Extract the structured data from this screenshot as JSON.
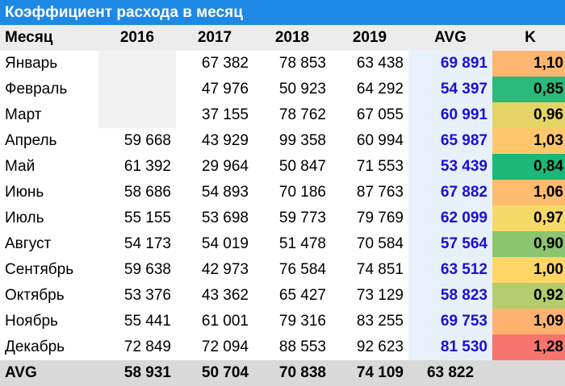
{
  "title": "Коэффициент расхода в месяц",
  "headers": [
    "Месяц",
    "2016",
    "2017",
    "2018",
    "2019",
    "AVG",
    "K"
  ],
  "rows": [
    {
      "month": "Январь",
      "y2016": "",
      "y2017": "67 382",
      "y2018": "78 853",
      "y2019": "63 438",
      "avg": "69 891",
      "k": "1,10",
      "k_color": "#fdb56f"
    },
    {
      "month": "Февраль",
      "y2016": "",
      "y2017": "47 976",
      "y2018": "50 923",
      "y2019": "64 292",
      "avg": "54 397",
      "k": "0,85",
      "k_color": "#2bba7a"
    },
    {
      "month": "Март",
      "y2016": "",
      "y2017": "37 155",
      "y2018": "78 762",
      "y2019": "67 055",
      "avg": "60 991",
      "k": "0,96",
      "k_color": "#e5d464"
    },
    {
      "month": "Апрель",
      "y2016": "59 668",
      "y2017": "43 929",
      "y2018": "99 358",
      "y2019": "60 994",
      "avg": "65 987",
      "k": "1,03",
      "k_color": "#fec86a"
    },
    {
      "month": "Май",
      "y2016": "61 392",
      "y2017": "29 964",
      "y2018": "50 847",
      "y2019": "71 553",
      "avg": "53 439",
      "k": "0,84",
      "k_color": "#1bb877"
    },
    {
      "month": "Июнь",
      "y2016": "58 686",
      "y2017": "54 893",
      "y2018": "70 186",
      "y2019": "87 763",
      "avg": "67 882",
      "k": "1,06",
      "k_color": "#fdbc6d"
    },
    {
      "month": "Июль",
      "y2016": "55 155",
      "y2017": "53 698",
      "y2018": "59 773",
      "y2019": "79 769",
      "avg": "62 099",
      "k": "0,97",
      "k_color": "#f5d966"
    },
    {
      "month": "Август",
      "y2016": "54 173",
      "y2017": "54 019",
      "y2018": "51 478",
      "y2019": "70 584",
      "avg": "57 564",
      "k": "0,90",
      "k_color": "#8bc56f"
    },
    {
      "month": "Сентябрь",
      "y2016": "59 638",
      "y2017": "42 973",
      "y2018": "76 584",
      "y2019": "74 851",
      "avg": "63 512",
      "k": "1,00",
      "k_color": "#ffd665"
    },
    {
      "month": "Октябрь",
      "y2016": "53 376",
      "y2017": "43 362",
      "y2018": "65 427",
      "y2019": "73 129",
      "avg": "58 823",
      "k": "0,92",
      "k_color": "#b4cc6c"
    },
    {
      "month": "Ноябрь",
      "y2016": "55 441",
      "y2017": "61 001",
      "y2018": "79 316",
      "y2019": "83 255",
      "avg": "69 753",
      "k": "1,09",
      "k_color": "#fdb26f"
    },
    {
      "month": "Декабрь",
      "y2016": "72 849",
      "y2017": "72 094",
      "y2018": "88 553",
      "y2019": "92 623",
      "avg": "81 530",
      "k": "1,28",
      "k_color": "#f8756d"
    }
  ],
  "footer": {
    "label": "AVG",
    "y2016": "58 931",
    "y2017": "50 704",
    "y2018": "70 838",
    "y2019": "74 109",
    "avg": "63 822",
    "k": ""
  }
}
